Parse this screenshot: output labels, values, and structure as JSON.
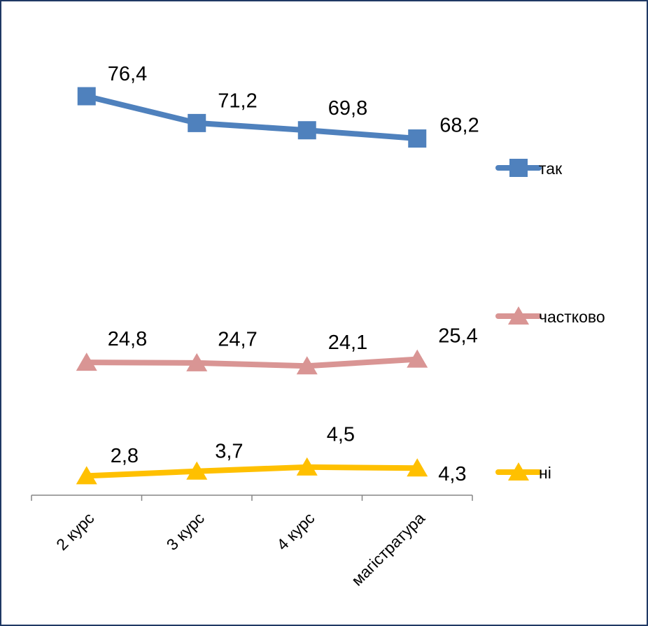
{
  "chart_data": {
    "type": "line",
    "categories": [
      "2 курс",
      "3 курс",
      "4 курс",
      "магістратура"
    ],
    "ylim": [
      0,
      80
    ],
    "series": [
      {
        "name": "так",
        "color": "#4f81bd",
        "marker": "square",
        "values": [
          76.4,
          71.2,
          69.8,
          68.2
        ],
        "value_labels": [
          "76,4",
          "71,2",
          "69,8",
          "68,2"
        ]
      },
      {
        "name": "частково",
        "color": "#d99594",
        "marker": "triangle",
        "values": [
          24.8,
          24.7,
          24.1,
          25.4
        ],
        "value_labels": [
          "24,8",
          "24,7",
          "24,1",
          "25,4"
        ]
      },
      {
        "name": "ні",
        "color": "#ffc000",
        "marker": "triangle",
        "values": [
          2.8,
          3.7,
          4.5,
          4.3
        ],
        "value_labels": [
          "2,8",
          "3,7",
          "4,5",
          "4,3"
        ]
      }
    ],
    "legend": "right"
  }
}
